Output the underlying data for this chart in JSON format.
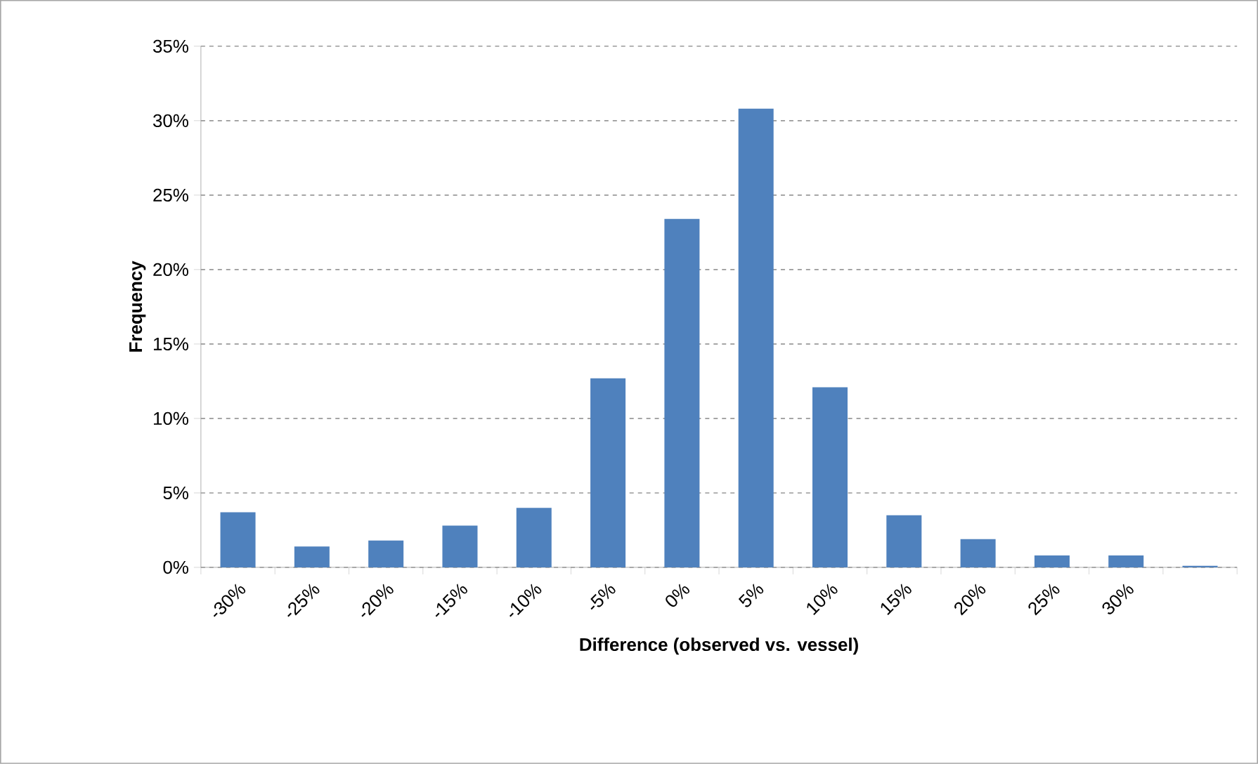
{
  "chart_data": {
    "type": "bar",
    "xlabel": "Difference (observed vs. vessel)",
    "ylabel": "Frequency",
    "categories": [
      "-30%",
      "-25%",
      "-20%",
      "-15%",
      "-10%",
      "-5%",
      "0%",
      "5%",
      "10%",
      "15%",
      "20%",
      "25%",
      "30%",
      null
    ],
    "values": [
      3.7,
      1.4,
      1.8,
      2.8,
      4.0,
      12.7,
      23.4,
      30.8,
      12.1,
      3.5,
      1.9,
      0.8,
      0.8,
      0.1
    ],
    "color": "#4f81bd",
    "ylim": [
      0,
      35
    ],
    "yticks": [
      {
        "value": 0,
        "label": "0%"
      },
      {
        "value": 5,
        "label": "5%"
      },
      {
        "value": 10,
        "label": "10%"
      },
      {
        "value": 15,
        "label": "15%"
      },
      {
        "value": 20,
        "label": "20%"
      },
      {
        "value": 25,
        "label": "25%"
      },
      {
        "value": 30,
        "label": "30%"
      },
      {
        "value": 35,
        "label": "35%"
      }
    ],
    "grid": "y"
  }
}
